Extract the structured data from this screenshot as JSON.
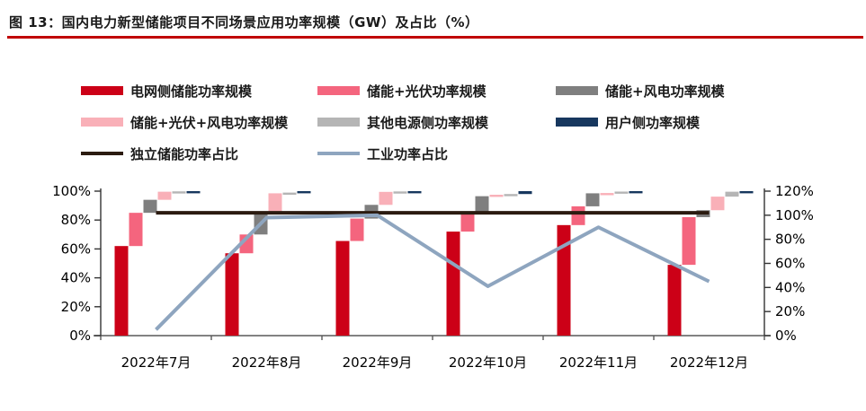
{
  "header": {
    "title": "图 13：国内电力新型储能项目不同场景应用功率规模（GW）及占比（%）",
    "underline_color": "#C00000"
  },
  "chart_data": {
    "type": "bar",
    "subtype": "waterfall-stacked-with-lines",
    "categories": [
      "2022年7月",
      "2022年8月",
      "2022年9月",
      "2022年10月",
      "2022年11月",
      "2022年12月"
    ],
    "bar_series": [
      {
        "name": "电网侧储能功率规模",
        "color": "#CC0017",
        "values": [
          62,
          57,
          65.5,
          72,
          76.5,
          49
        ]
      },
      {
        "name": "储能+光伏功率规模",
        "color": "#F4657E",
        "values": [
          23,
          13,
          15.5,
          12,
          13,
          33
        ]
      },
      {
        "name": "储能+风电功率规模",
        "color": "#7F7F7F",
        "values": [
          9,
          14,
          9.5,
          12.5,
          9,
          4.8
        ]
      },
      {
        "name": "储能+光伏+风电功率规模",
        "color": "#F9B0B8",
        "values": [
          5.6,
          14.5,
          9,
          1,
          0.2,
          9.4
        ]
      },
      {
        "name": "其他电源侧功率规模",
        "color": "#B5B5B5",
        "values": [
          0.25,
          0.5,
          0.3,
          0.5,
          1.0,
          3.4
        ]
      },
      {
        "name": "用户侧功率规模",
        "color": "#17375E",
        "values": [
          0.15,
          1,
          0.2,
          2,
          0.3,
          0.4
        ]
      }
    ],
    "line_series": [
      {
        "name": "独立储能功率占比",
        "color": "#2B1B10",
        "axis": "right",
        "values": [
          102,
          102,
          102,
          102,
          102,
          102
        ]
      },
      {
        "name": "工业功率占比",
        "color": "#8EA5BF",
        "axis": "right",
        "values": [
          5,
          98,
          100,
          41,
          90,
          45
        ]
      }
    ],
    "left_axis": {
      "min": 0,
      "max": 100,
      "tick_values": [
        0,
        20,
        40,
        60,
        80,
        100
      ],
      "unit": "%"
    },
    "right_axis": {
      "min": 0,
      "max": 120,
      "tick_values": [
        0,
        20,
        40,
        60,
        80,
        100,
        120
      ],
      "unit": "%"
    },
    "stacking": "waterfall",
    "grid": "off",
    "legend_position": "top"
  }
}
